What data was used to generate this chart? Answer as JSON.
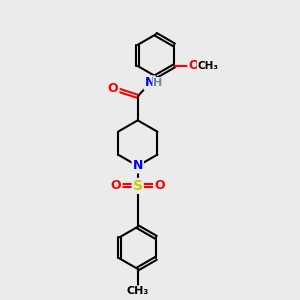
{
  "bg_color": "#ebebeb",
  "bond_color": "#000000",
  "atom_colors": {
    "O": "#ff0000",
    "N": "#0000ff",
    "S": "#cccc00",
    "H": "#5f9090",
    "C": "#000000"
  },
  "bond_width": 1.5,
  "dbo": 0.055,
  "figsize": [
    3.0,
    3.0
  ],
  "dpi": 100
}
